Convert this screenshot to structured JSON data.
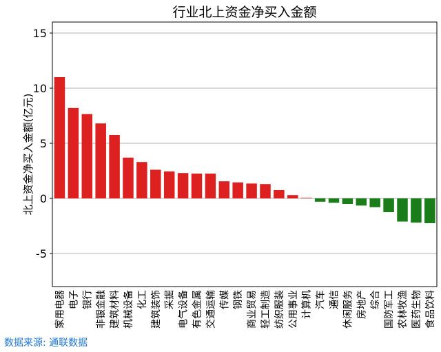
{
  "chart_data": {
    "type": "bar",
    "title": "行业北上资金净买入金额",
    "xlabel": "",
    "ylabel": "北上资金净买入金额(亿元)",
    "ylim": [
      -8,
      16
    ],
    "yticks": [
      -5,
      0,
      5,
      10,
      15
    ],
    "grid": "horizontal",
    "legend": "none",
    "categories": [
      "家用电器",
      "电子",
      "银行",
      "非银金融",
      "建筑材料",
      "机械设备",
      "化工",
      "建筑装饰",
      "采掘",
      "电气设备",
      "有色金属",
      "交通运输",
      "传媒",
      "钢铁",
      "商业贸易",
      "轻工制造",
      "纺织服装",
      "公用事业",
      "计算机",
      "汽车",
      "通信",
      "休闲服务",
      "房地产",
      "综合",
      "国防军工",
      "农林牧渔",
      "医药生物",
      "食品饮料"
    ],
    "values": [
      11.0,
      8.2,
      7.65,
      6.8,
      5.75,
      3.7,
      3.3,
      2.6,
      2.45,
      2.3,
      2.25,
      2.25,
      1.55,
      1.45,
      1.35,
      1.3,
      0.75,
      0.3,
      0.05,
      -0.3,
      -0.4,
      -0.5,
      -0.65,
      -0.8,
      -1.25,
      -2.1,
      -2.2,
      -2.25
    ],
    "colors": {
      "positive": "#dd2020",
      "negative": "#1a7d1a",
      "grid": "#b0b0b0",
      "axis": "#000000"
    }
  },
  "footer": {
    "source_label": "数据来源: 通联数据"
  }
}
